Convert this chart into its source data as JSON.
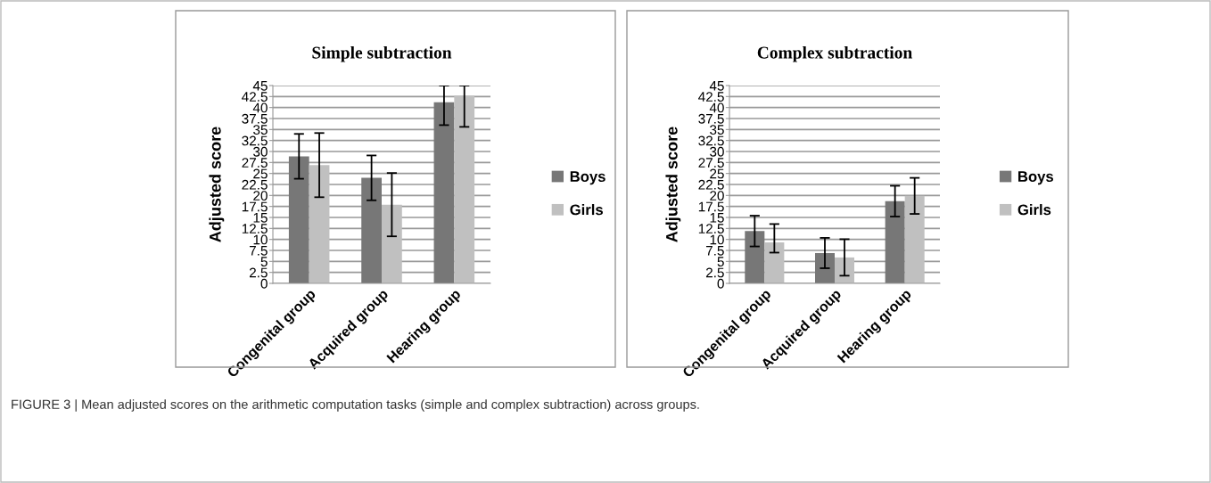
{
  "chart_data": [
    {
      "type": "bar",
      "title": "Simple subtraction",
      "ylabel": "Adjusted score",
      "categories": [
        "Congenital group",
        "Acquired group",
        "Hearing group"
      ],
      "series": [
        {
          "name": "Boys",
          "color": "#777777",
          "values": [
            28.9,
            24.0,
            41.2
          ],
          "errors": [
            5.1,
            5.1,
            [
              36.0,
              45
            ]
          ]
        },
        {
          "name": "Girls",
          "color": "#c0c0c0",
          "values": [
            26.9,
            17.9,
            42.7
          ],
          "errors": [
            7.3,
            7.2,
            [
              35.6,
              45
            ]
          ]
        }
      ],
      "ylim": [
        0,
        45
      ],
      "yticks": [
        0,
        2.5,
        5,
        7.5,
        10,
        12.5,
        15,
        17.5,
        20,
        22.5,
        25,
        27.5,
        30,
        32.5,
        35,
        37.5,
        40,
        42.5,
        45
      ],
      "grid": "y",
      "legend": "right"
    },
    {
      "type": "bar",
      "title": "Complex subtraction",
      "ylabel": "Adjusted score",
      "categories": [
        "Congenital group",
        "Acquired group",
        "Hearing group"
      ],
      "series": [
        {
          "name": "Boys",
          "color": "#777777",
          "values": [
            11.9,
            6.9,
            18.7
          ],
          "errors": [
            3.5,
            3.45,
            3.5
          ]
        },
        {
          "name": "Girls",
          "color": "#c0c0c0",
          "values": [
            9.3,
            5.9,
            19.9
          ],
          "errors": [
            [
              7.0,
              13.5
            ],
            4.15,
            4.1
          ]
        }
      ],
      "ylim": [
        0,
        45
      ],
      "yticks": [
        0,
        2.5,
        5,
        7.5,
        10,
        12.5,
        15,
        17.5,
        20,
        22.5,
        25,
        27.5,
        30,
        32.5,
        35,
        37.5,
        40,
        42.5,
        45
      ],
      "grid": "y",
      "legend": "right",
      "annotations": [
        "FIGURE 3 | Mean adjusted scores on the arithmetic computation tasks (simple and complex subtraction) across groups."
      ]
    }
  ]
}
